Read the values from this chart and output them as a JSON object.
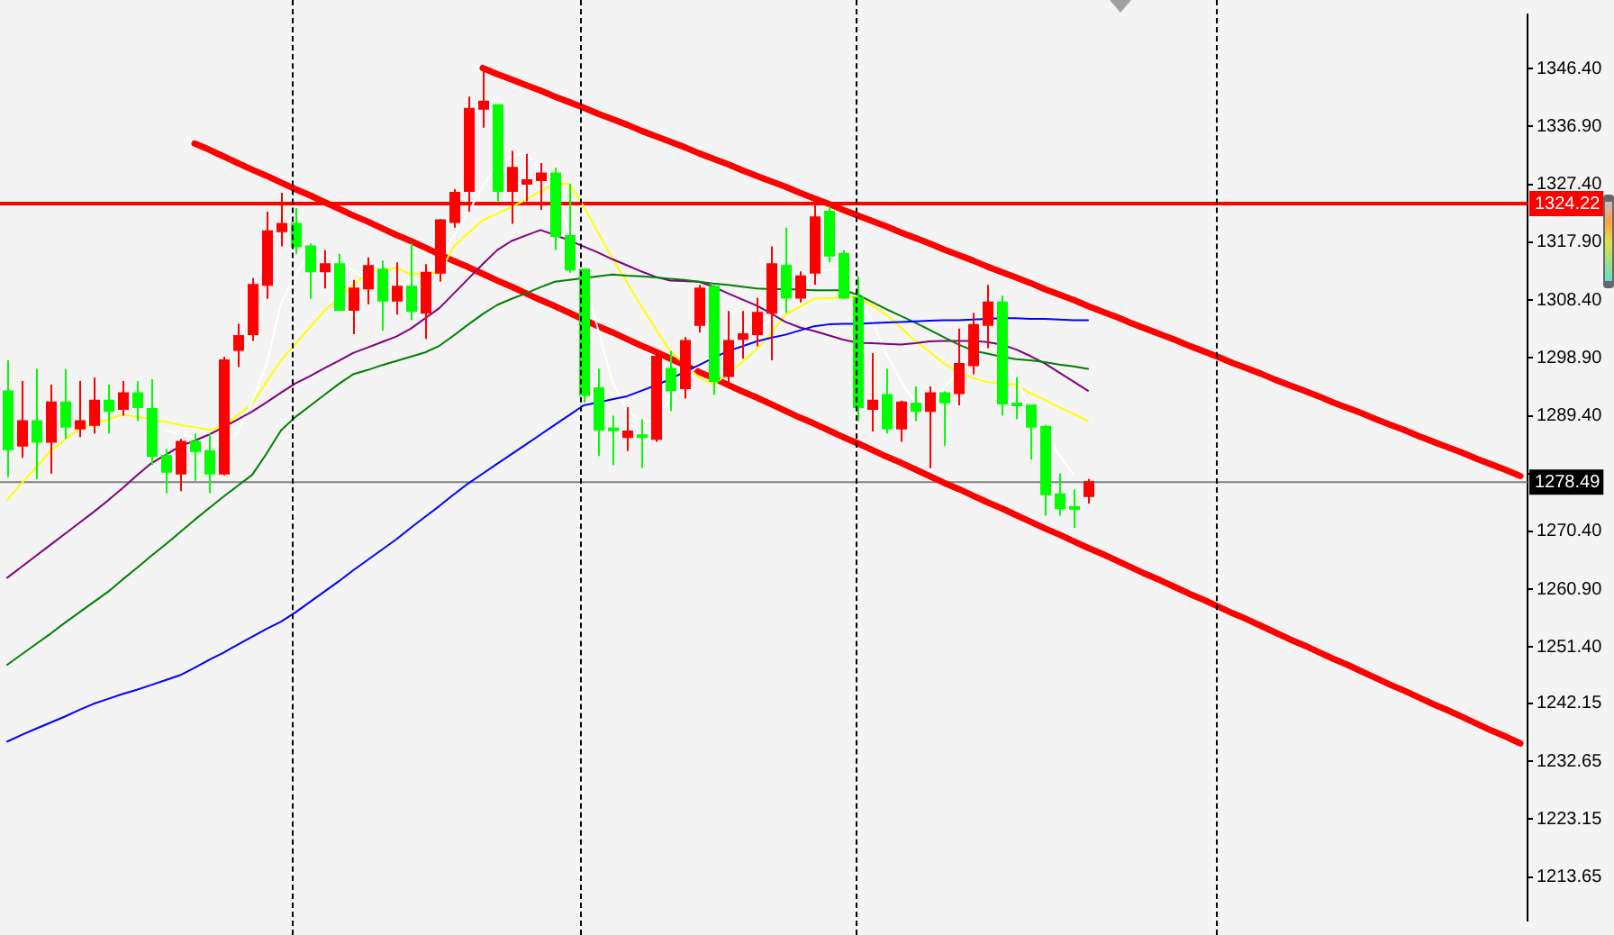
{
  "chart_data": {
    "type": "candlestick",
    "categories": [
      null,
      null,
      null,
      null,
      null,
      null,
      null,
      null,
      null,
      null,
      null,
      null,
      null,
      null,
      null,
      null,
      null,
      null,
      null,
      null,
      null,
      null,
      null,
      null,
      null,
      null,
      null,
      null,
      null,
      null,
      null,
      null,
      null,
      null,
      null,
      null,
      null,
      null,
      null,
      null,
      null,
      null,
      null,
      null,
      null,
      null,
      null,
      null,
      null,
      null,
      null,
      null,
      null,
      null,
      null,
      null,
      null,
      null,
      null,
      null,
      null,
      null,
      null,
      null,
      null,
      null,
      null,
      null,
      null,
      null,
      null,
      null,
      null,
      null,
      null,
      null,
      null,
      null,
      null,
      null,
      null,
      null,
      null,
      null,
      null,
      null,
      null,
      null,
      null,
      null,
      null,
      null,
      null,
      null,
      null,
      null,
      null,
      null,
      null,
      null,
      null,
      null,
      null,
      null,
      null,
      null
    ],
    "ohlc": [
      [
        1293.4,
        1298.5,
        1279.3,
        1283.9
      ],
      [
        1284.5,
        1295.1,
        1282.5,
        1288.5
      ],
      [
        1288.5,
        1297.1,
        1279.0,
        1285.1
      ],
      [
        1285.1,
        1294.5,
        1279.9,
        1291.6
      ],
      [
        1291.6,
        1297.1,
        1285.6,
        1287.6
      ],
      [
        1287.3,
        1295.1,
        1285.9,
        1288.5
      ],
      [
        1287.9,
        1295.7,
        1286.5,
        1291.9
      ],
      [
        1291.9,
        1294.5,
        1286.5,
        1290.2
      ],
      [
        1290.5,
        1295.1,
        1289.4,
        1293.1
      ],
      [
        1293.1,
        1295.1,
        1288.5,
        1290.8
      ],
      [
        1290.5,
        1295.4,
        1281.3,
        1282.8
      ],
      [
        1282.8,
        1283.9,
        1276.7,
        1280.2
      ],
      [
        1279.9,
        1285.6,
        1277.0,
        1285.1
      ],
      [
        1285.1,
        1286.5,
        1278.7,
        1283.6
      ],
      [
        1283.6,
        1286.5,
        1276.7,
        1279.9
      ],
      [
        1279.9,
        1299.1,
        1279.6,
        1298.5
      ],
      [
        1300.2,
        1304.5,
        1297.4,
        1302.5
      ],
      [
        1302.8,
        1312.0,
        1301.7,
        1310.9
      ],
      [
        1310.9,
        1322.9,
        1308.6,
        1319.7
      ],
      [
        1319.7,
        1326.0,
        1317.2,
        1320.9
      ],
      [
        1320.9,
        1323.5,
        1316.0,
        1317.2
      ],
      [
        1317.2,
        1317.7,
        1308.6,
        1313.1
      ],
      [
        1313.1,
        1316.6,
        1310.3,
        1314.3
      ],
      [
        1314.3,
        1316.0,
        1306.8,
        1306.8
      ],
      [
        1306.8,
        1311.7,
        1302.8,
        1310.3
      ],
      [
        1310.3,
        1315.4,
        1307.7,
        1314.0
      ],
      [
        1313.4,
        1314.9,
        1303.4,
        1308.3
      ],
      [
        1308.3,
        1314.6,
        1306.0,
        1310.6
      ],
      [
        1310.6,
        1317.7,
        1305.1,
        1306.6
      ],
      [
        1306.3,
        1314.3,
        1302.0,
        1312.9
      ],
      [
        1312.9,
        1321.7,
        1311.4,
        1321.5
      ],
      [
        1321.2,
        1326.6,
        1320.3,
        1326.0
      ],
      [
        1326.3,
        1341.8,
        1322.9,
        1339.8
      ],
      [
        1339.8,
        1346.7,
        1336.7,
        1341.0
      ],
      [
        1340.4,
        1340.4,
        1324.6,
        1326.3
      ],
      [
        1326.3,
        1332.9,
        1320.9,
        1330.1
      ],
      [
        1327.5,
        1332.4,
        1324.6,
        1328.1
      ],
      [
        1328.1,
        1330.9,
        1323.2,
        1329.2
      ],
      [
        1329.2,
        1330.1,
        1316.6,
        1318.9
      ],
      [
        1318.9,
        1327.5,
        1312.9,
        1313.4
      ],
      [
        1313.4,
        1313.4,
        1291.6,
        1292.8
      ],
      [
        1293.9,
        1297.1,
        1282.8,
        1287.1
      ],
      [
        1287.3,
        1289.4,
        1281.3,
        1287.1
      ],
      [
        1285.9,
        1290.8,
        1283.6,
        1286.8
      ],
      [
        1286.2,
        1288.8,
        1280.8,
        1285.9
      ],
      [
        1285.6,
        1300.2,
        1285.1,
        1299.1
      ],
      [
        1297.1,
        1300.0,
        1290.2,
        1293.6
      ],
      [
        1293.9,
        1302.3,
        1292.2,
        1301.7
      ],
      [
        1304.3,
        1310.9,
        1303.1,
        1310.3
      ],
      [
        1310.6,
        1310.9,
        1292.8,
        1295.1
      ],
      [
        1295.9,
        1306.6,
        1294.2,
        1301.7
      ],
      [
        1302.0,
        1306.6,
        1298.8,
        1302.8
      ],
      [
        1302.8,
        1308.8,
        1300.8,
        1306.3
      ],
      [
        1306.3,
        1317.2,
        1298.5,
        1314.3
      ],
      [
        1314.0,
        1320.3,
        1306.3,
        1308.8
      ],
      [
        1308.8,
        1313.1,
        1308.0,
        1312.3
      ],
      [
        1312.9,
        1324.6,
        1310.9,
        1322.0
      ],
      [
        1322.9,
        1323.8,
        1314.6,
        1315.7
      ],
      [
        1316.0,
        1316.6,
        1308.6,
        1308.8
      ],
      [
        1308.8,
        1312.3,
        1288.5,
        1290.8
      ],
      [
        1290.5,
        1299.7,
        1286.8,
        1291.9
      ],
      [
        1292.8,
        1297.1,
        1286.5,
        1287.3
      ],
      [
        1287.3,
        1291.9,
        1285.1,
        1291.6
      ],
      [
        1291.4,
        1294.2,
        1288.5,
        1290.2
      ],
      [
        1290.2,
        1294.2,
        1280.8,
        1293.1
      ],
      [
        1293.1,
        1293.4,
        1284.5,
        1291.6
      ],
      [
        1293.1,
        1303.7,
        1291.1,
        1297.9
      ],
      [
        1297.7,
        1306.3,
        1296.2,
        1304.3
      ],
      [
        1304.3,
        1310.9,
        1300.5,
        1308.0
      ],
      [
        1308.0,
        1309.1,
        1289.4,
        1291.4
      ],
      [
        1291.4,
        1295.7,
        1288.8,
        1291.1
      ],
      [
        1291.1,
        1291.1,
        1282.2,
        1287.6
      ],
      [
        1287.6,
        1287.9,
        1273.0,
        1276.5
      ],
      [
        1276.5,
        1279.9,
        1273.0,
        1274.2
      ],
      [
        1274.4,
        1277.3,
        1271.0,
        1274.2
      ],
      [
        1276.2,
        1279.0,
        1275.0,
        1278.49
      ],
      null,
      null,
      null,
      null,
      null,
      null,
      null,
      null,
      null,
      null,
      null,
      null,
      null,
      null,
      null,
      null,
      null,
      null,
      null,
      null,
      null,
      null,
      null,
      null,
      null,
      null,
      null,
      null,
      null,
      null
    ],
    "colors": [
      "#00ff00",
      "#ff0000",
      "#00ff00",
      "#ff0000",
      "#00ff00",
      "#ff0000",
      "#ff0000",
      "#00ff00",
      "#ff0000",
      "#00ff00",
      "#00ff00",
      "#00ff00",
      "#ff0000",
      "#00ff00",
      "#00ff00",
      "#ff0000",
      "#ff0000",
      "#ff0000",
      "#ff0000",
      "#ff0000",
      "#00ff00",
      "#00ff00",
      "#ff0000",
      "#00ff00",
      "#ff0000",
      "#ff0000",
      "#00ff00",
      "#ff0000",
      "#00ff00",
      "#ff0000",
      "#ff0000",
      "#ff0000",
      "#ff0000",
      "#ff0000",
      "#00ff00",
      "#ff0000",
      "#ff0000",
      "#ff0000",
      "#00ff00",
      "#00ff00",
      "#00ff00",
      "#00ff00",
      "#00ff00",
      "#ff0000",
      "#00ff00",
      "#ff0000",
      "#00ff00",
      "#ff0000",
      "#ff0000",
      "#00ff00",
      "#ff0000",
      "#ff0000",
      "#ff0000",
      "#ff0000",
      "#00ff00",
      "#ff0000",
      "#ff0000",
      "#00ff00",
      "#00ff00",
      "#00ff00",
      "#ff0000",
      "#00ff00",
      "#ff0000",
      "#00ff00",
      "#ff0000",
      "#00ff00",
      "#ff0000",
      "#ff0000",
      "#ff0000",
      "#00ff00",
      "#00ff00",
      "#00ff00",
      "#00ff00",
      "#00ff00",
      "#00ff00",
      "#ff0000",
      null,
      null,
      null,
      null,
      null,
      null,
      null,
      null,
      null,
      null,
      null,
      null,
      null,
      null,
      null,
      null,
      null,
      null,
      null,
      null,
      null,
      null,
      null,
      null,
      null,
      null,
      null,
      null,
      null,
      null
    ],
    "ylim": [
      1206.5,
      1355.3
    ],
    "yticks": [
      {
        "value": 1346.4,
        "label": "1346.40"
      },
      {
        "value": 1336.9,
        "label": "1336.90"
      },
      {
        "value": 1327.4,
        "label": "1327.40"
      },
      {
        "value": 1317.9,
        "label": "1317.90"
      },
      {
        "value": 1308.4,
        "label": "1308.40"
      },
      {
        "value": 1298.9,
        "label": "1298.90"
      },
      {
        "value": 1289.4,
        "label": "1289.40"
      },
      {
        "value": 1279.9,
        "label": null
      },
      {
        "value": 1270.4,
        "label": "1270.40"
      },
      {
        "value": 1260.9,
        "label": "1260.90"
      },
      {
        "value": 1251.4,
        "label": "1251.40"
      },
      {
        "value": 1242.15,
        "label": "1242.15"
      },
      {
        "value": 1232.65,
        "label": "1232.65"
      },
      {
        "value": 1223.15,
        "label": "1223.15"
      },
      {
        "value": 1213.65,
        "label": "1213.65"
      }
    ],
    "tick_labels": "y",
    "series": [
      {
        "type": "line",
        "color": "#0000ff",
        "values": [
          1235.9,
          1237.0,
          1238.0,
          1239.0,
          1240.0,
          1241.1,
          1242.1,
          1242.9,
          1243.7,
          1244.4,
          1245.2,
          1246.0,
          1246.8,
          1248.0,
          1249.3,
          1250.5,
          1251.8,
          1253.1,
          1254.4,
          1255.6,
          1257.1,
          1258.8,
          1260.5,
          1262.2,
          1264.0,
          1265.7,
          1267.4,
          1269.1,
          1271.0,
          1272.8,
          1274.6,
          1276.5,
          1278.3,
          1279.9,
          1281.5,
          1283.1,
          1284.7,
          1286.3,
          1287.9,
          1289.5,
          1291.1,
          1291.6,
          1292.1,
          1292.6,
          1293.5,
          1294.4,
          1295.4,
          1296.6,
          1297.7,
          1298.9,
          1300.0,
          1300.8,
          1301.6,
          1302.2,
          1302.7,
          1303.4,
          1304.1,
          1304.4,
          1304.5,
          1304.5,
          1304.6,
          1304.7,
          1304.8,
          1304.9,
          1305.0,
          1305.1,
          1305.1,
          1305.2,
          1305.3,
          1305.4,
          1305.4,
          1305.3,
          1305.3,
          1305.2,
          1305.1,
          1305.1,
          null,
          null,
          null,
          null,
          null,
          null,
          null,
          null,
          null,
          null,
          null,
          null,
          null,
          null,
          null,
          null,
          null,
          null,
          null,
          null,
          null,
          null,
          null,
          null,
          null,
          null,
          null,
          null,
          null,
          null
        ]
      },
      {
        "type": "line",
        "color": "#008000",
        "values": [
          1248.5,
          1250.2,
          1251.9,
          1253.6,
          1255.4,
          1257.1,
          1258.8,
          1260.5,
          1262.5,
          1264.4,
          1266.4,
          1268.3,
          1270.3,
          1272.3,
          1274.2,
          1276.1,
          1277.9,
          1279.7,
          1283.2,
          1287.0,
          1289.2,
          1291.0,
          1292.8,
          1294.6,
          1296.2,
          1296.9,
          1297.7,
          1298.4,
          1299.1,
          1299.8,
          1300.9,
          1302.6,
          1304.4,
          1306.1,
          1307.6,
          1308.6,
          1309.5,
          1310.5,
          1311.4,
          1311.7,
          1312.0,
          1312.3,
          1312.6,
          1312.4,
          1312.3,
          1312.1,
          1311.9,
          1311.7,
          1311.4,
          1311.1,
          1310.9,
          1310.6,
          1310.3,
          1310.2,
          1310.2,
          1310.1,
          1310.0,
          1310.0,
          1310.0,
          1309.3,
          1308.1,
          1306.9,
          1305.8,
          1304.7,
          1303.5,
          1302.3,
          1301.1,
          1300.1,
          1299.6,
          1299.1,
          1298.7,
          1298.5,
          1298.2,
          1297.8,
          1297.5,
          1297.1,
          null,
          null,
          null,
          null,
          null,
          null,
          null,
          null,
          null,
          null,
          null,
          null,
          null,
          null,
          null,
          null,
          null,
          null,
          null,
          null,
          null,
          null,
          null,
          null,
          null,
          null,
          null,
          null,
          null,
          null
        ]
      },
      {
        "type": "line",
        "color": "#800080",
        "values": [
          1262.8,
          1264.6,
          1266.4,
          1268.2,
          1270.0,
          1271.8,
          1273.6,
          1275.5,
          1277.5,
          1279.6,
          1281.6,
          1283.0,
          1284.4,
          1285.3,
          1286.3,
          1287.5,
          1288.8,
          1290.1,
          1291.6,
          1293.2,
          1294.7,
          1295.9,
          1297.2,
          1298.4,
          1299.7,
          1300.6,
          1301.5,
          1302.4,
          1303.7,
          1305.4,
          1307.1,
          1309.5,
          1311.9,
          1314.3,
          1316.6,
          1318.1,
          1319.0,
          1319.9,
          1319.1,
          1318.2,
          1317.2,
          1316.2,
          1315.1,
          1314.1,
          1313.1,
          1312.2,
          1311.6,
          1311.5,
          1311.4,
          1310.6,
          1309.5,
          1308.5,
          1307.5,
          1306.2,
          1304.8,
          1303.9,
          1303.3,
          1302.6,
          1301.9,
          1301.4,
          1301.3,
          1301.2,
          1301.1,
          1301.3,
          1301.6,
          1301.7,
          1301.7,
          1301.7,
          1301.5,
          1301.1,
          1300.3,
          1299.2,
          1298.0,
          1296.5,
          1295.0,
          1293.5,
          null,
          null,
          null,
          null,
          null,
          null,
          null,
          null,
          null,
          null,
          null,
          null,
          null,
          null,
          null,
          null,
          null,
          null,
          null,
          null,
          null,
          null,
          null,
          null,
          null,
          null,
          null,
          null,
          null,
          null
        ]
      },
      {
        "type": "line",
        "color": "#ffffff",
        "values": [
          null,
          null,
          null,
          null,
          null,
          null,
          null,
          null,
          null,
          null,
          null,
          1287.0,
          1286.4,
          1285.7,
          1285.1,
          1284.5,
          1286.7,
          1291.8,
          1297.9,
          1307.8,
          1312.7,
          1315.8,
          1315.8,
          1314.7,
          1313.3,
          1311.7,
          1310.4,
          1311.0,
          1311.6,
          1312.1,
          1315.1,
          1318.9,
          1322.8,
          1327.1,
          1330.7,
          1331.9,
          1332.6,
          1329.6,
          1326.6,
          1319.4,
          1312.2,
          1303.6,
          1294.9,
          1290.3,
          1288.5,
          1288.5,
          1292.1,
          1295.6,
          1297.7,
          1299.7,
          1301.2,
          1302.4,
          1303.6,
          1305.1,
          1306.9,
          1310.0,
          1313.1,
          1313.4,
          1313.7,
          1309.3,
          1305.0,
          1299.5,
          1295.2,
          1291.6,
          1291.6,
          1293.9,
          1296.7,
          1300.0,
          1300.9,
          1299.2,
          1295.4,
          1290.9,
          1286.1,
          1283.0,
          1279.7,
          null,
          null,
          null,
          null,
          null,
          null,
          null,
          null,
          null,
          null,
          null,
          null,
          null,
          null,
          null,
          null,
          null,
          null,
          null,
          null,
          null,
          null,
          null,
          null,
          null,
          null,
          null,
          null,
          null,
          null,
          null
        ]
      },
      {
        "type": "line",
        "color": "#ffff00",
        "values": [
          1275.6,
          1278.3,
          1280.9,
          1283.6,
          1285.5,
          1287.3,
          1288.1,
          1288.8,
          1289.6,
          1289.2,
          1288.8,
          1288.4,
          1287.9,
          1287.5,
          1287.1,
          1287.6,
          1289.5,
          1291.4,
          1295.0,
          1298.5,
          1301.2,
          1303.9,
          1306.6,
          1308.7,
          1310.8,
          1312.9,
          1313.3,
          1313.7,
          1312.6,
          1312.8,
          1312.9,
          1317.2,
          1319.4,
          1321.5,
          1322.6,
          1323.7,
          1324.9,
          1326.2,
          1327.5,
          1327.5,
          1323.8,
          1319.5,
          1315.2,
          1311.3,
          1307.4,
          1303.7,
          1300.0,
          1297.9,
          1295.7,
          1294.5,
          1296.2,
          1298.2,
          1300.3,
          1302.9,
          1306.0,
          1307.3,
          1308.6,
          1308.7,
          1308.8,
          1308.9,
          1307.5,
          1306.0,
          1303.9,
          1301.7,
          1299.9,
          1298.0,
          1296.6,
          1295.6,
          1294.9,
          1294.7,
          1294.5,
          1293.1,
          1292.0,
          1290.8,
          1289.7,
          1288.5,
          null,
          null,
          null,
          null,
          null,
          null,
          null,
          null,
          null,
          null,
          null,
          null,
          null,
          null,
          null,
          null,
          null,
          null,
          null,
          null,
          null,
          null,
          null,
          null,
          null,
          null,
          null,
          null,
          null,
          null
        ]
      },
      {
        "type": "line",
        "color": "#ff0000",
        "values": [
          null,
          null,
          null,
          null,
          null,
          null,
          null,
          null,
          null,
          null,
          null,
          null,
          null,
          null,
          null,
          null,
          null,
          null,
          null,
          null,
          null,
          null,
          null,
          null,
          null,
          null,
          null,
          null,
          null,
          null,
          null,
          null,
          null,
          1346.5,
          1345.5,
          1344.6,
          1343.7,
          1342.8,
          1341.8,
          1340.9,
          1340.0,
          1339.0,
          1338.1,
          1337.2,
          1336.2,
          1335.3,
          1334.4,
          1333.5,
          1332.5,
          1331.6,
          1330.7,
          1329.7,
          1328.8,
          1327.9,
          1327.0,
          1326.0,
          1325.1,
          1324.2,
          1323.2,
          1322.3,
          1321.4,
          1320.5,
          1319.5,
          1318.6,
          1317.7,
          1316.7,
          1315.8,
          1314.9,
          1313.9,
          1313.0,
          1312.1,
          1311.2,
          1310.2,
          1309.3,
          1308.4,
          1307.4,
          1306.5,
          1305.6,
          1304.6,
          1303.7,
          1302.8,
          1301.9,
          1300.9,
          1300.0,
          1299.1,
          1298.1,
          1297.2,
          1296.3,
          1295.3,
          1294.4,
          1293.5,
          1292.6,
          1291.6,
          1290.7,
          1289.8,
          1288.8,
          1287.9,
          1287.0,
          1286.0,
          1285.1,
          1284.2,
          1283.3,
          1282.3,
          1281.4,
          1280.5,
          1279.5
        ]
      },
      {
        "type": "line",
        "color": "#ff0000",
        "values": [
          null,
          null,
          null,
          null,
          null,
          null,
          null,
          null,
          null,
          null,
          null,
          null,
          null,
          1334.1,
          1333.1,
          1332.0,
          1330.9,
          1329.8,
          1328.8,
          1327.7,
          1326.6,
          1325.6,
          1324.5,
          1323.4,
          1322.3,
          1321.3,
          1320.2,
          1319.1,
          1318.1,
          1317.0,
          1315.9,
          1314.8,
          1313.8,
          1312.7,
          1311.6,
          1310.6,
          1309.5,
          1308.4,
          1307.4,
          1306.3,
          1305.2,
          1304.1,
          1303.1,
          1302.0,
          1300.9,
          1299.9,
          1298.8,
          1297.7,
          1296.6,
          1295.6,
          1294.5,
          1293.4,
          1292.4,
          1291.3,
          1290.2,
          1289.1,
          1288.1,
          1287.0,
          1285.9,
          1284.9,
          1283.8,
          1282.7,
          1281.7,
          1280.6,
          1279.5,
          1278.4,
          1277.4,
          1276.3,
          1275.2,
          1274.2,
          1273.1,
          1272.0,
          1270.9,
          1269.9,
          1268.8,
          1267.7,
          1266.7,
          1265.6,
          1264.5,
          1263.4,
          1262.4,
          1261.3,
          1260.2,
          1259.2,
          1258.1,
          1257.0,
          1256.0,
          1254.9,
          1253.8,
          1252.7,
          1251.7,
          1250.6,
          1249.5,
          1248.5,
          1247.4,
          1246.3,
          1245.2,
          1244.2,
          1243.1,
          1242.0,
          1241.0,
          1239.9,
          1238.8,
          1237.7,
          1236.7,
          1235.6
        ]
      }
    ],
    "ref_lines": [
      {
        "axis": "y",
        "value": 1324.22,
        "label": "1324.22",
        "color": "#ff0000"
      },
      {
        "axis": "y",
        "value": 1278.49,
        "label": "1278.49",
        "color": "#808080"
      }
    ]
  }
}
